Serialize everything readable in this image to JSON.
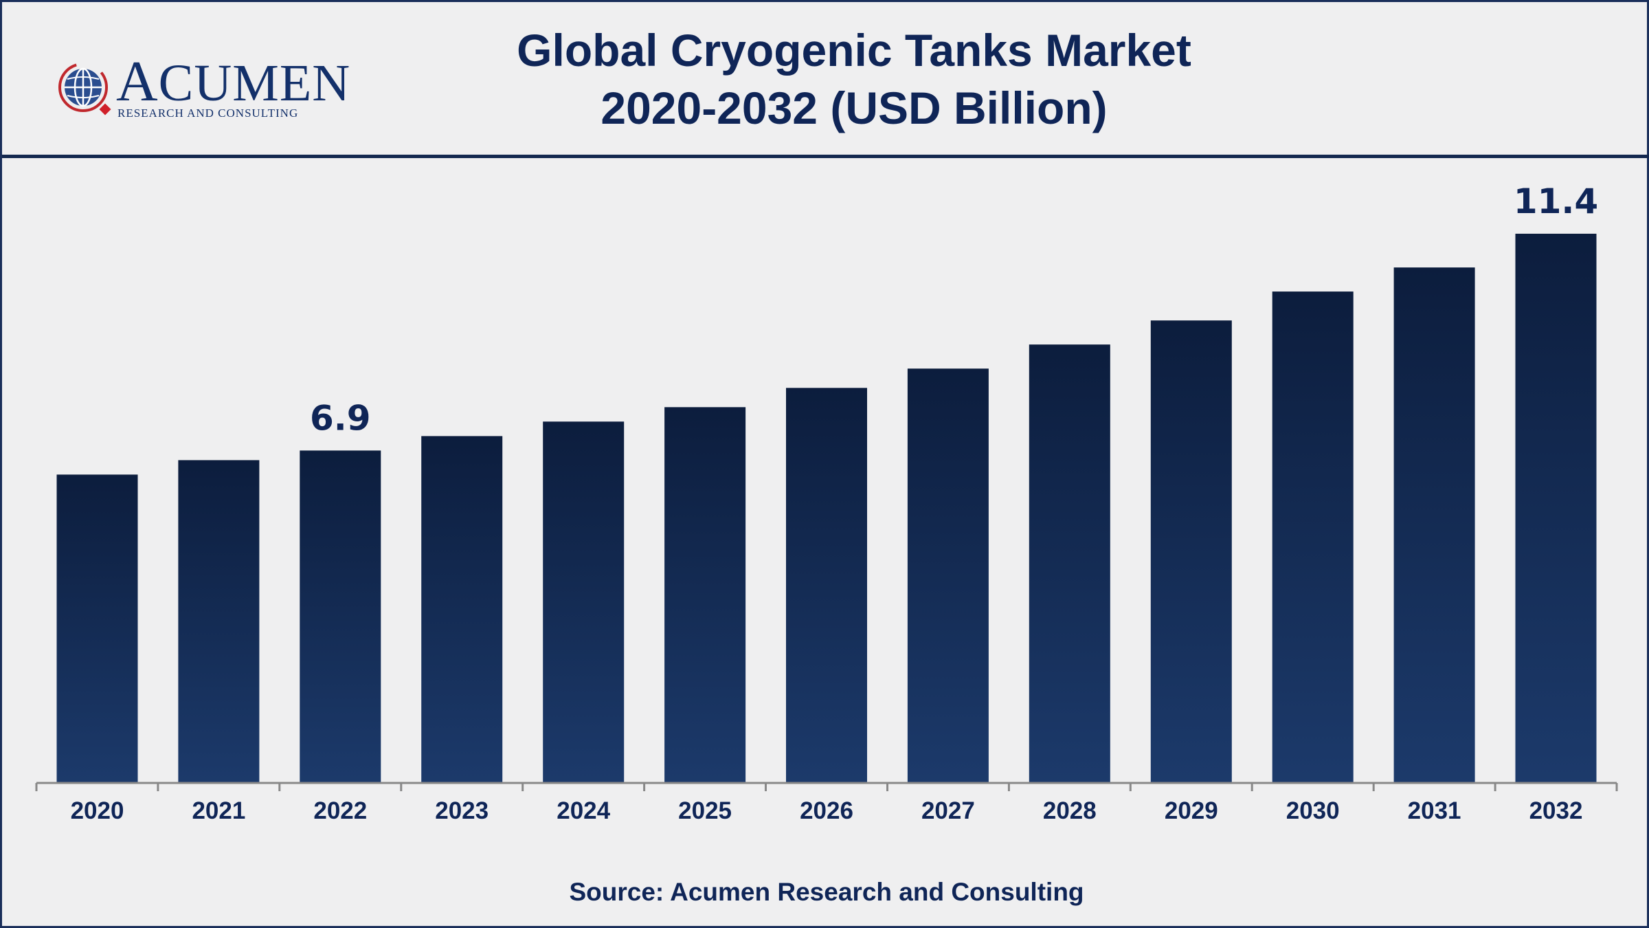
{
  "brand": {
    "name": "ACUMEN",
    "tagline": "RESEARCH AND CONSULTING"
  },
  "title": {
    "line1": "Global Cryogenic Tanks Market",
    "line2": "2020-2032 (USD Billion)"
  },
  "source": "Source: Acumen Research and Consulting",
  "colors": {
    "bar_top": "#0c1d3d",
    "bar_bottom": "#1c3a6b",
    "text": "#0f2557",
    "axis": "#888888"
  },
  "chart_data": {
    "type": "bar",
    "title": "Global Cryogenic Tanks Market 2020-2032 (USD Billion)",
    "xlabel": "",
    "ylabel": "",
    "categories": [
      "2020",
      "2021",
      "2022",
      "2023",
      "2024",
      "2025",
      "2026",
      "2027",
      "2028",
      "2029",
      "2030",
      "2031",
      "2032"
    ],
    "values": [
      6.4,
      6.7,
      6.9,
      7.2,
      7.5,
      7.8,
      8.2,
      8.6,
      9.1,
      9.6,
      10.2,
      10.7,
      11.4
    ],
    "data_labels": [
      {
        "category": "2022",
        "text": "6.9"
      },
      {
        "category": "2032",
        "text": "11.4"
      }
    ],
    "ylim": [
      0,
      11.4
    ],
    "grid": false,
    "legend": "none"
  }
}
